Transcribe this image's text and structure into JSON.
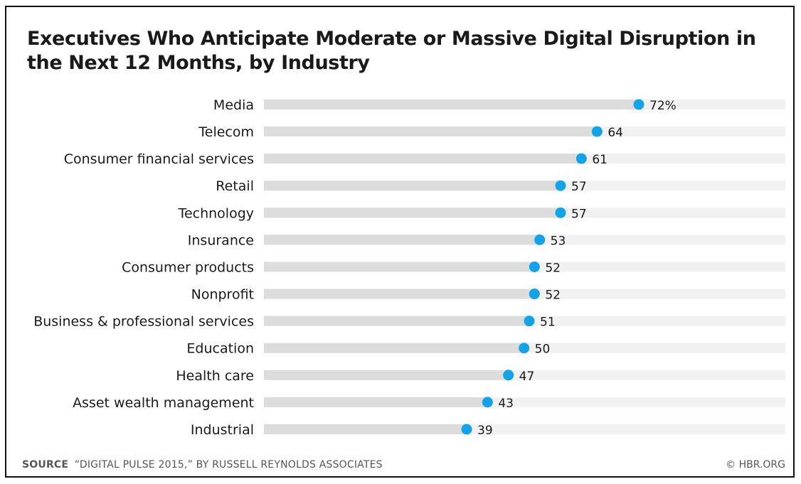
{
  "chart_data": {
    "type": "scatter",
    "title": "Executives Who Anticipate Moderate or Massive Digital Disruption in the Next 12 Months, by Industry",
    "categories": [
      "Media",
      "Telecom",
      "Consumer financial services",
      "Retail",
      "Technology",
      "Insurance",
      "Consumer products",
      "Nonprofit",
      "Business & professional services",
      "Education",
      "Health care",
      "Asset wealth management",
      "Industrial"
    ],
    "values": [
      72,
      64,
      61,
      57,
      57,
      53,
      52,
      52,
      51,
      50,
      47,
      43,
      39
    ],
    "value_labels": [
      "72%",
      "64",
      "61",
      "57",
      "57",
      "53",
      "52",
      "52",
      "51",
      "50",
      "47",
      "43",
      "39"
    ],
    "unit": "%",
    "orientation": "horizontal",
    "xlim": [
      0,
      100
    ],
    "grid": false,
    "colors": {
      "dot": "#12a3e8",
      "track_filled": "#dcdcdc",
      "track_empty": "#f1f1f1"
    }
  },
  "footer": {
    "source_key": "SOURCE",
    "source_text": "“DIGITAL PULSE 2015,” BY RUSSELL REYNOLDS ASSOCIATES",
    "credit": "© HBR.ORG"
  }
}
